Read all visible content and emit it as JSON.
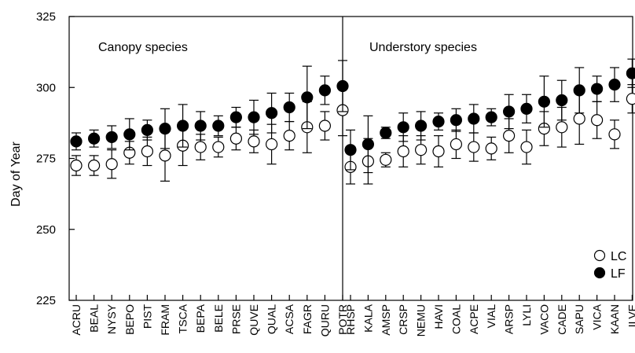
{
  "chart_data": {
    "type": "scatter",
    "ylabel": "Day of Year",
    "ylim": [
      225,
      325
    ],
    "yticks": [
      225,
      250,
      275,
      300,
      325
    ],
    "grid": false,
    "legend_position": "bottom-right",
    "panels": [
      {
        "label": "Canopy species",
        "categories": [
          "ACRU",
          "BEAL",
          "NYSY",
          "BEPO",
          "PIST",
          "FRAM",
          "TSCA",
          "BEPA",
          "BELE",
          "PRSE",
          "QUVE",
          "QUAL",
          "ACSA",
          "FAGR",
          "QURU",
          "POTR"
        ],
        "series": [
          {
            "name": "LC",
            "marker": "open-circle",
            "values": [
              272.5,
              272.5,
              273,
              277,
              277.5,
              276,
              279.5,
              279,
              279,
              282,
              281,
              280,
              283,
              286,
              286.5,
              292
            ],
            "errors": [
              3.5,
              3.5,
              5,
              4,
              5,
              9,
              7,
              4.5,
              3.5,
              4,
              4,
              7,
              5,
              9,
              5,
              9
            ]
          },
          {
            "name": "LF",
            "marker": "filled-circle",
            "values": [
              281,
              282,
              282.5,
              283.5,
              285,
              285.5,
              286.5,
              286.5,
              286.5,
              289.5,
              289.5,
              291,
              293,
              296.5,
              299,
              300.5
            ],
            "errors": [
              3,
              3,
              4,
              5.5,
              3.5,
              7,
              7.5,
              5,
              3.5,
              3.5,
              6,
              7,
              5,
              11,
              5,
              9
            ]
          }
        ]
      },
      {
        "label": "Understory species",
        "categories": [
          "RHSP",
          "KALA",
          "AMSP",
          "CRSP",
          "NEMU",
          "HAVI",
          "COAL",
          "ACPE",
          "VIAL",
          "ARSP",
          "LYLI",
          "VACO",
          "CADE",
          "SAPU",
          "VICA",
          "KAAN",
          "ILVE"
        ],
        "series": [
          {
            "name": "LC",
            "marker": "open-circle",
            "values": [
              272,
              274,
              274.5,
              277.5,
              278,
              277.5,
              280,
              279,
              278.5,
              283,
              279,
              285.5,
              286,
              289,
              288.5,
              283.5,
              296
            ],
            "errors": [
              6,
              8,
              2.5,
              5.5,
              5,
              5.5,
              5,
              5,
              4,
              6,
              6,
              6,
              7,
              9,
              6.5,
              5,
              5
            ]
          },
          {
            "name": "LF",
            "marker": "filled-circle",
            "values": [
              278,
              280,
              284,
              286,
              286.5,
              288,
              288.5,
              289,
              289.5,
              291.5,
              292.5,
              295,
              295.5,
              299,
              299.5,
              301,
              305
            ],
            "errors": [
              7,
              10,
              2,
              5,
              5,
              3,
              4,
              5,
              3,
              6,
              5,
              9,
              7,
              8,
              4.5,
              6,
              5
            ]
          }
        ]
      }
    ],
    "legend": [
      {
        "name": "LC",
        "marker": "open-circle"
      },
      {
        "name": "LF",
        "marker": "filled-circle"
      }
    ]
  }
}
